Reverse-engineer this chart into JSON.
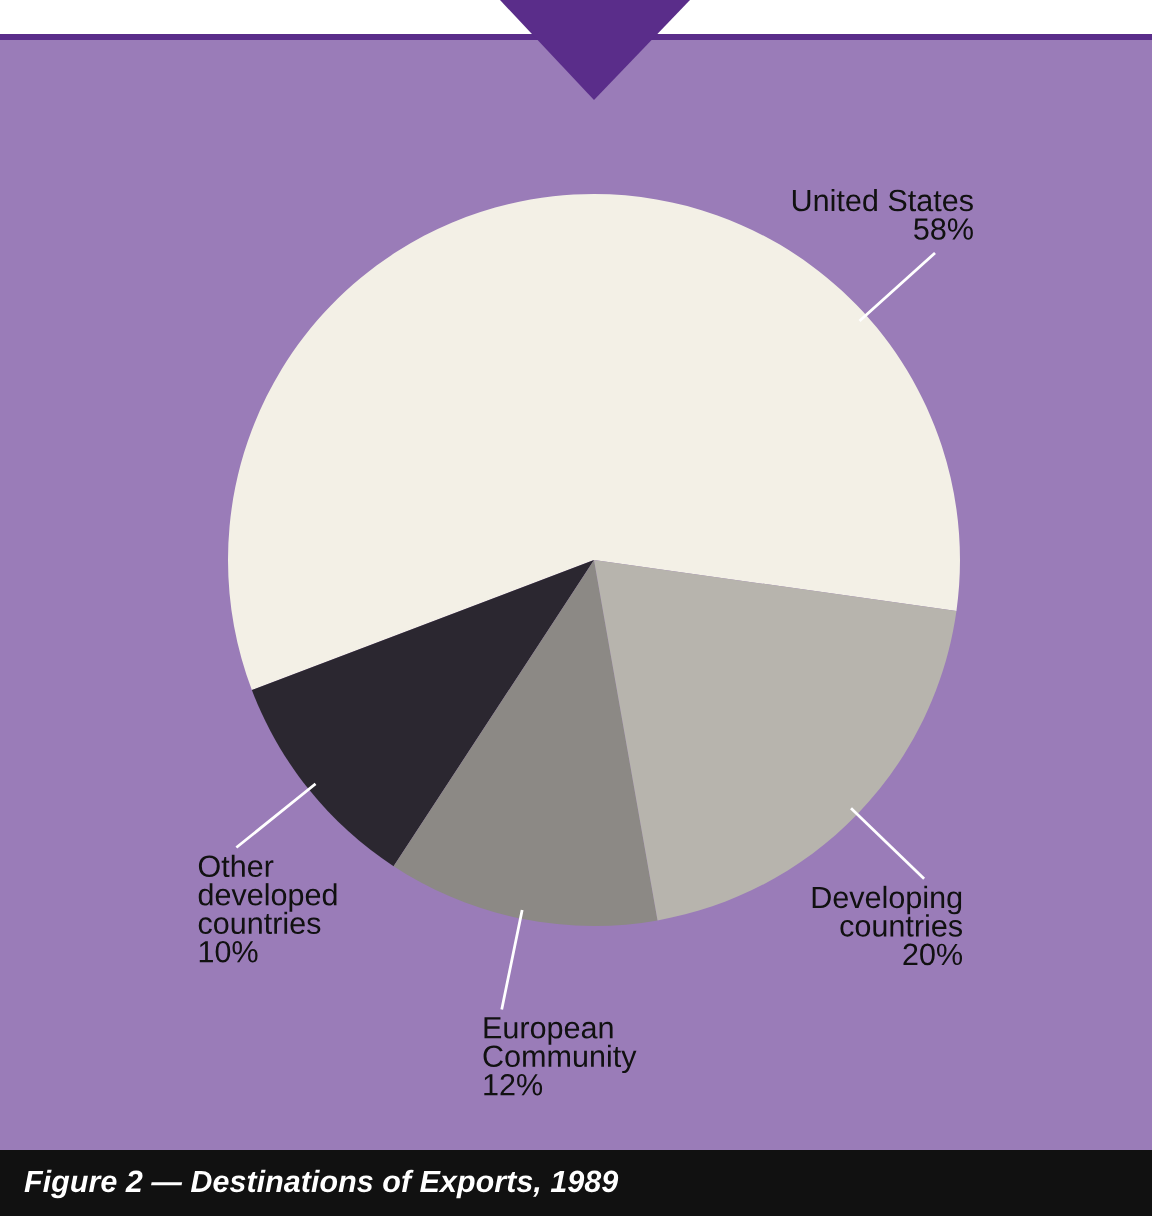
{
  "chart_data": {
    "type": "pie",
    "title": "Figure 2 — Destinations of Exports, 1989",
    "categories": [
      "United States",
      "Other developed countries",
      "European Community",
      "Developing countries"
    ],
    "values": [
      58,
      10,
      12,
      20
    ],
    "colors": [
      "#f3f0e6",
      "#2b2730",
      "#8c8985",
      "#b7b4ad"
    ],
    "value_labels": [
      "58%",
      "10%",
      "12%",
      "20%"
    ]
  }
}
